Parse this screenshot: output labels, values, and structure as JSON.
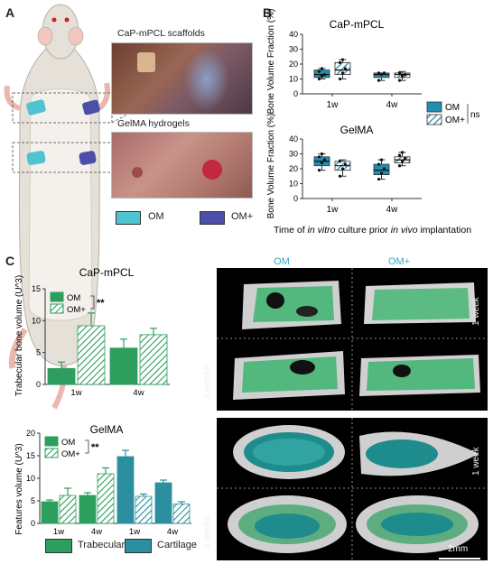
{
  "panels": {
    "A": {
      "letter": "A",
      "photo_titles": [
        "CaP-mPCL scaffolds",
        "GelMA hydrogels"
      ],
      "legend": [
        {
          "label": "OM",
          "color": "#4fc3cf"
        },
        {
          "label": "OM+",
          "color": "#4b4fa8"
        }
      ]
    },
    "B": {
      "letter": "B",
      "xlabel_parts": [
        "Time of ",
        "in vitro",
        " culture prior ",
        "in vivo",
        " implantation"
      ],
      "legend": [
        {
          "label": "OM",
          "pattern": "solid"
        },
        {
          "label": "OM+",
          "pattern": "hatched"
        }
      ],
      "ns_label": "ns"
    },
    "C": {
      "letter": "C",
      "ct_columns": [
        "OM",
        "OM+"
      ],
      "ct_rows_top": [
        "1 week",
        "4 weeks"
      ],
      "ct_rows_bottom": [
        "1 week",
        "4 weeks"
      ],
      "scale_bar": "2mm",
      "bottom_legend": [
        {
          "label": "Trabecular",
          "color": "#2e9e5e"
        },
        {
          "label": "Cartilage",
          "color": "#2b8fa0"
        }
      ]
    }
  },
  "chart_data": [
    {
      "type": "box",
      "title": "CaP-mPCL",
      "ylabel": "Bone Volume Fraction (%)",
      "ylim": [
        0,
        40
      ],
      "yticks": [
        0,
        10,
        20,
        30,
        40
      ],
      "categories": [
        "1w",
        "4w"
      ],
      "series": [
        {
          "name": "OM",
          "boxes": [
            {
              "min": 10,
              "q1": 11,
              "median": 13,
              "q3": 16,
              "max": 17,
              "points": [
                10,
                12,
                13,
                15,
                17
              ]
            },
            {
              "min": 9,
              "q1": 11,
              "median": 13,
              "q3": 14,
              "max": 14,
              "points": [
                9,
                13,
                14,
                14
              ]
            }
          ]
        },
        {
          "name": "OM+",
          "boxes": [
            {
              "min": 10,
              "q1": 13,
              "median": 16,
              "q3": 21,
              "max": 23,
              "points": [
                10,
                14,
                17,
                21,
                23
              ]
            },
            {
              "min": 9,
              "q1": 11,
              "median": 13,
              "q3": 14,
              "max": 15,
              "points": [
                9,
                12,
                13,
                14
              ]
            }
          ]
        }
      ]
    },
    {
      "type": "box",
      "title": "GelMA",
      "ylabel": "Bone Volume Fraction (%)",
      "ylim": [
        0,
        40
      ],
      "yticks": [
        0,
        10,
        20,
        30,
        40
      ],
      "categories": [
        "1w",
        "4w"
      ],
      "series": [
        {
          "name": "OM",
          "boxes": [
            {
              "min": 19,
              "q1": 22,
              "median": 25,
              "q3": 28,
              "max": 30,
              "points": [
                19,
                24,
                26,
                28,
                30
              ]
            },
            {
              "min": 13,
              "q1": 16,
              "median": 19,
              "q3": 23,
              "max": 26,
              "points": [
                13,
                17,
                20,
                23,
                26
              ]
            }
          ]
        },
        {
          "name": "OM+",
          "boxes": [
            {
              "min": 15,
              "q1": 19,
              "median": 22,
              "q3": 25,
              "max": 26,
              "points": [
                15,
                20,
                23,
                25
              ]
            },
            {
              "min": 22,
              "q1": 24,
              "median": 26,
              "q3": 28,
              "max": 31,
              "points": [
                22,
                25,
                27,
                29,
                31
              ]
            }
          ]
        }
      ]
    },
    {
      "type": "bar",
      "title": "CaP-mPCL",
      "ylabel": "Trabecular bone volume (U^3)",
      "ylim": [
        0,
        15
      ],
      "yticks": [
        0,
        5,
        10,
        15
      ],
      "categories": [
        "1w",
        "4w"
      ],
      "series": [
        {
          "name": "OM",
          "values": [
            2.5,
            5.7
          ],
          "errors": [
            1.0,
            1.4
          ]
        },
        {
          "name": "OM+",
          "values": [
            9.2,
            7.8
          ],
          "errors": [
            2.0,
            1.0
          ]
        }
      ],
      "annotation": "**"
    },
    {
      "type": "bar",
      "title": "GelMA",
      "ylabel": "Features volume (U^3)",
      "ylim": [
        0,
        20
      ],
      "yticks": [
        0,
        5,
        10,
        15,
        20
      ],
      "categories": [
        "1w",
        "4w",
        "1w",
        "4w"
      ],
      "groups": [
        "Trabecular",
        "Trabecular",
        "Cartilage",
        "Cartilage"
      ],
      "series": [
        {
          "name": "OM",
          "values": [
            4.8,
            6.2,
            14.8,
            9.0
          ],
          "errors": [
            0.4,
            0.6,
            1.4,
            0.6
          ]
        },
        {
          "name": "OM+",
          "values": [
            6.2,
            11.0,
            6.0,
            4.3
          ],
          "errors": [
            1.6,
            1.3,
            0.5,
            0.5
          ]
        }
      ],
      "annotation": "**"
    }
  ]
}
